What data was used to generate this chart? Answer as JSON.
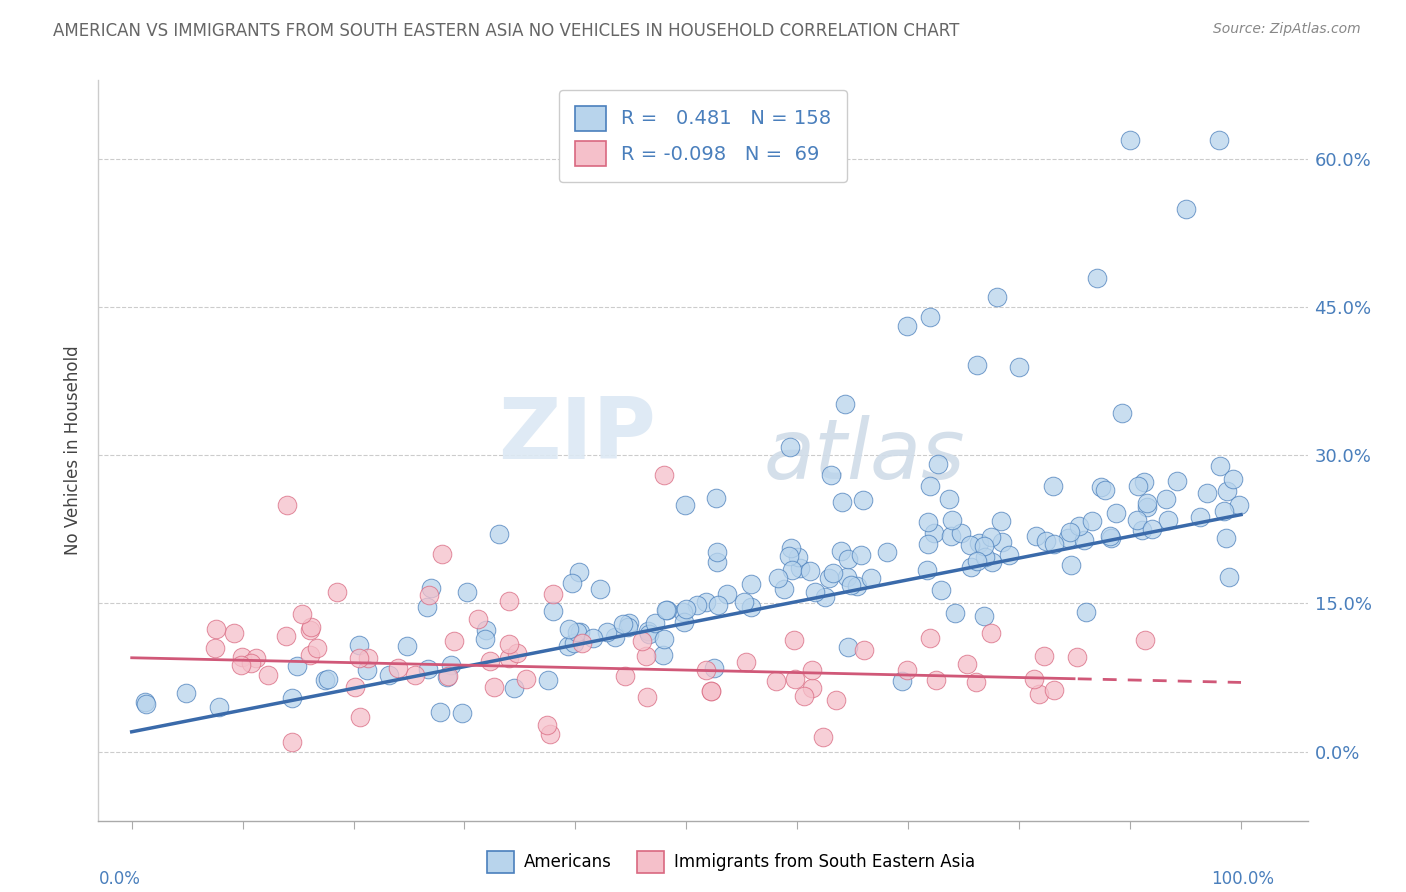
{
  "title": "AMERICAN VS IMMIGRANTS FROM SOUTH EASTERN ASIA NO VEHICLES IN HOUSEHOLD CORRELATION CHART",
  "source": "Source: ZipAtlas.com",
  "ylabel": "No Vehicles in Household",
  "ytick_vals": [
    0.0,
    15.0,
    30.0,
    45.0,
    60.0
  ],
  "ytick_labels": [
    "0.0%",
    "15.0%",
    "30.0%",
    "45.0%",
    "60.0%"
  ],
  "x_left_label": "0.0%",
  "x_right_label": "100.0%",
  "legend1_label": "R =   0.481   N = 158",
  "legend2_label": "R = -0.098   N =  69",
  "american_face": "#b8d4ec",
  "american_edge": "#4a7fbc",
  "immigrant_face": "#f5c0ca",
  "immigrant_edge": "#d96880",
  "line_am_color": "#3a6aaa",
  "line_im_color": "#d05878",
  "grid_color": "#cccccc",
  "title_color": "#666666",
  "source_color": "#888888",
  "ylabel_color": "#444444",
  "axis_label_color": "#4a7fbc",
  "watermark_zip_color": "#dce8f4",
  "watermark_atlas_color": "#d0dce8",
  "bottom_label_1": "Americans",
  "bottom_label_2": "Immigrants from South Eastern Asia"
}
